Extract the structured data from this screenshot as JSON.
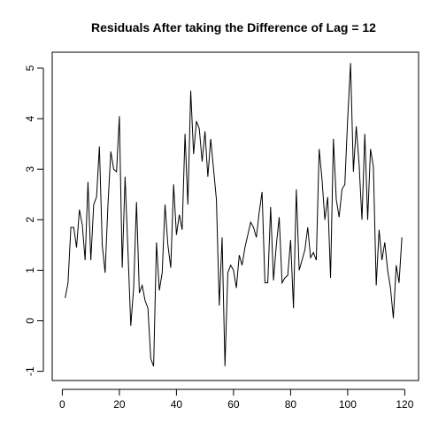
{
  "chart_data": {
    "type": "line",
    "title": "Residuals After taking the Difference of Lag = 12",
    "xlabel": "",
    "ylabel": "",
    "xlim": [
      0,
      120
    ],
    "ylim": [
      -1,
      5
    ],
    "x_ticks": [
      0,
      20,
      40,
      60,
      80,
      100,
      120
    ],
    "y_ticks": [
      -1,
      0,
      1,
      2,
      3,
      4,
      5
    ],
    "grid": false,
    "legend": "none",
    "line_color": "#000000",
    "series": [
      {
        "x": [
          1,
          2,
          3,
          4,
          5,
          6,
          7,
          8,
          9,
          10,
          11,
          12,
          13,
          14,
          15,
          16,
          17,
          18,
          19,
          20,
          21,
          22,
          23,
          24,
          25,
          26,
          27,
          28,
          29,
          30,
          31,
          32,
          33,
          34,
          35,
          36,
          37,
          38,
          39,
          40,
          41,
          42,
          43,
          44,
          45,
          46,
          47,
          48,
          49,
          50,
          51,
          52,
          53,
          54,
          55,
          56,
          57,
          58,
          59,
          60,
          61,
          62,
          63,
          64,
          65,
          66,
          67,
          68,
          69,
          70,
          71,
          72,
          73,
          74,
          75,
          76,
          77,
          78,
          79,
          80,
          81,
          82,
          83,
          84,
          85,
          86,
          87,
          88,
          89,
          90,
          91,
          92,
          93,
          94,
          95,
          96,
          97,
          98,
          99,
          100,
          101,
          102,
          103,
          104,
          105,
          106,
          107,
          108,
          109,
          110,
          111,
          112,
          113,
          114,
          115,
          116,
          117,
          118,
          119,
          120
        ],
        "values": [
          0.45,
          0.75,
          1.85,
          1.85,
          1.45,
          2.2,
          1.9,
          1.2,
          2.75,
          1.2,
          2.3,
          2.45,
          3.45,
          1.5,
          0.95,
          2.3,
          3.35,
          3.0,
          2.95,
          4.05,
          1.05,
          2.85,
          1.4,
          -0.1,
          0.65,
          2.35,
          0.55,
          0.7,
          0.4,
          0.25,
          -0.75,
          -0.9,
          1.55,
          0.6,
          0.95,
          2.3,
          1.5,
          1.05,
          2.7,
          1.7,
          2.1,
          1.8,
          3.7,
          2.3,
          4.55,
          3.3,
          3.95,
          3.8,
          3.15,
          3.75,
          2.85,
          3.6,
          3.0,
          2.4,
          0.3,
          1.65,
          -0.9,
          0.95,
          1.1,
          1.0,
          0.65,
          1.3,
          1.1,
          1.45,
          1.7,
          1.95,
          1.85,
          1.65,
          2.15,
          2.55,
          0.75,
          0.75,
          2.25,
          0.8,
          1.5,
          2.05,
          0.75,
          0.85,
          0.9,
          1.6,
          0.25,
          2.6,
          1.0,
          1.2,
          1.4,
          1.85,
          1.25,
          1.35,
          1.2,
          3.4,
          2.8,
          2.0,
          2.45,
          0.85,
          3.6,
          2.4,
          2.05,
          2.6,
          2.7,
          4.0,
          5.1,
          2.95,
          3.85,
          3.1,
          2.0,
          3.7,
          2.0,
          3.4,
          3.05,
          0.7,
          1.8,
          1.2,
          1.55,
          1.0,
          0.65,
          0.05,
          1.1,
          0.75,
          1.65,
          null
        ]
      }
    ]
  }
}
